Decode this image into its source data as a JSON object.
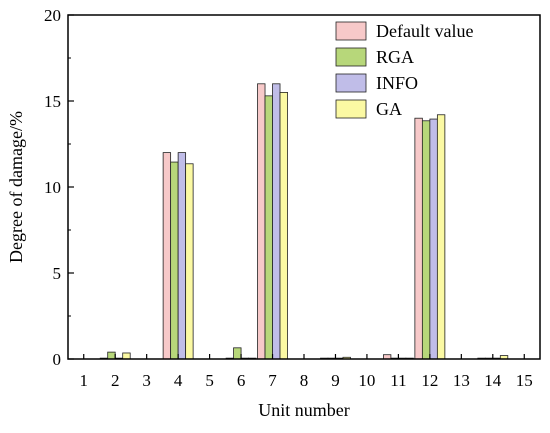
{
  "chart_data": {
    "type": "bar",
    "xlabel": "Unit number",
    "ylabel": "Degree of damage/%",
    "ylim": [
      0,
      20
    ],
    "yticks": [
      "0",
      "5",
      "10",
      "15",
      "20"
    ],
    "categories": [
      "1",
      "2",
      "3",
      "4",
      "5",
      "6",
      "7",
      "8",
      "9",
      "10",
      "11",
      "12",
      "13",
      "14",
      "15"
    ],
    "series": [
      {
        "name": "Default value",
        "color": "#f7c9c9",
        "values": [
          0,
          0.05,
          0,
          12.0,
          0,
          0.05,
          16.0,
          0,
          0.05,
          0,
          0.25,
          14.0,
          0,
          0.05,
          0
        ]
      },
      {
        "name": "RGA",
        "color": "#b7d77a",
        "values": [
          0,
          0.4,
          0,
          11.45,
          0,
          0.65,
          15.3,
          0,
          0.05,
          0,
          0.05,
          13.85,
          0,
          0.05,
          0
        ]
      },
      {
        "name": "INFO",
        "color": "#c0bde8",
        "values": [
          0,
          0.05,
          0,
          12.0,
          0,
          0.05,
          16.0,
          0,
          0.05,
          0,
          0.05,
          13.95,
          0,
          0.05,
          0
        ]
      },
      {
        "name": "GA",
        "color": "#fbf9a3",
        "values": [
          0,
          0.35,
          0,
          11.35,
          0,
          0.05,
          15.5,
          0,
          0.1,
          0,
          0.05,
          14.2,
          0,
          0.2,
          0
        ]
      }
    ],
    "legend": "top-right",
    "grid": false
  }
}
